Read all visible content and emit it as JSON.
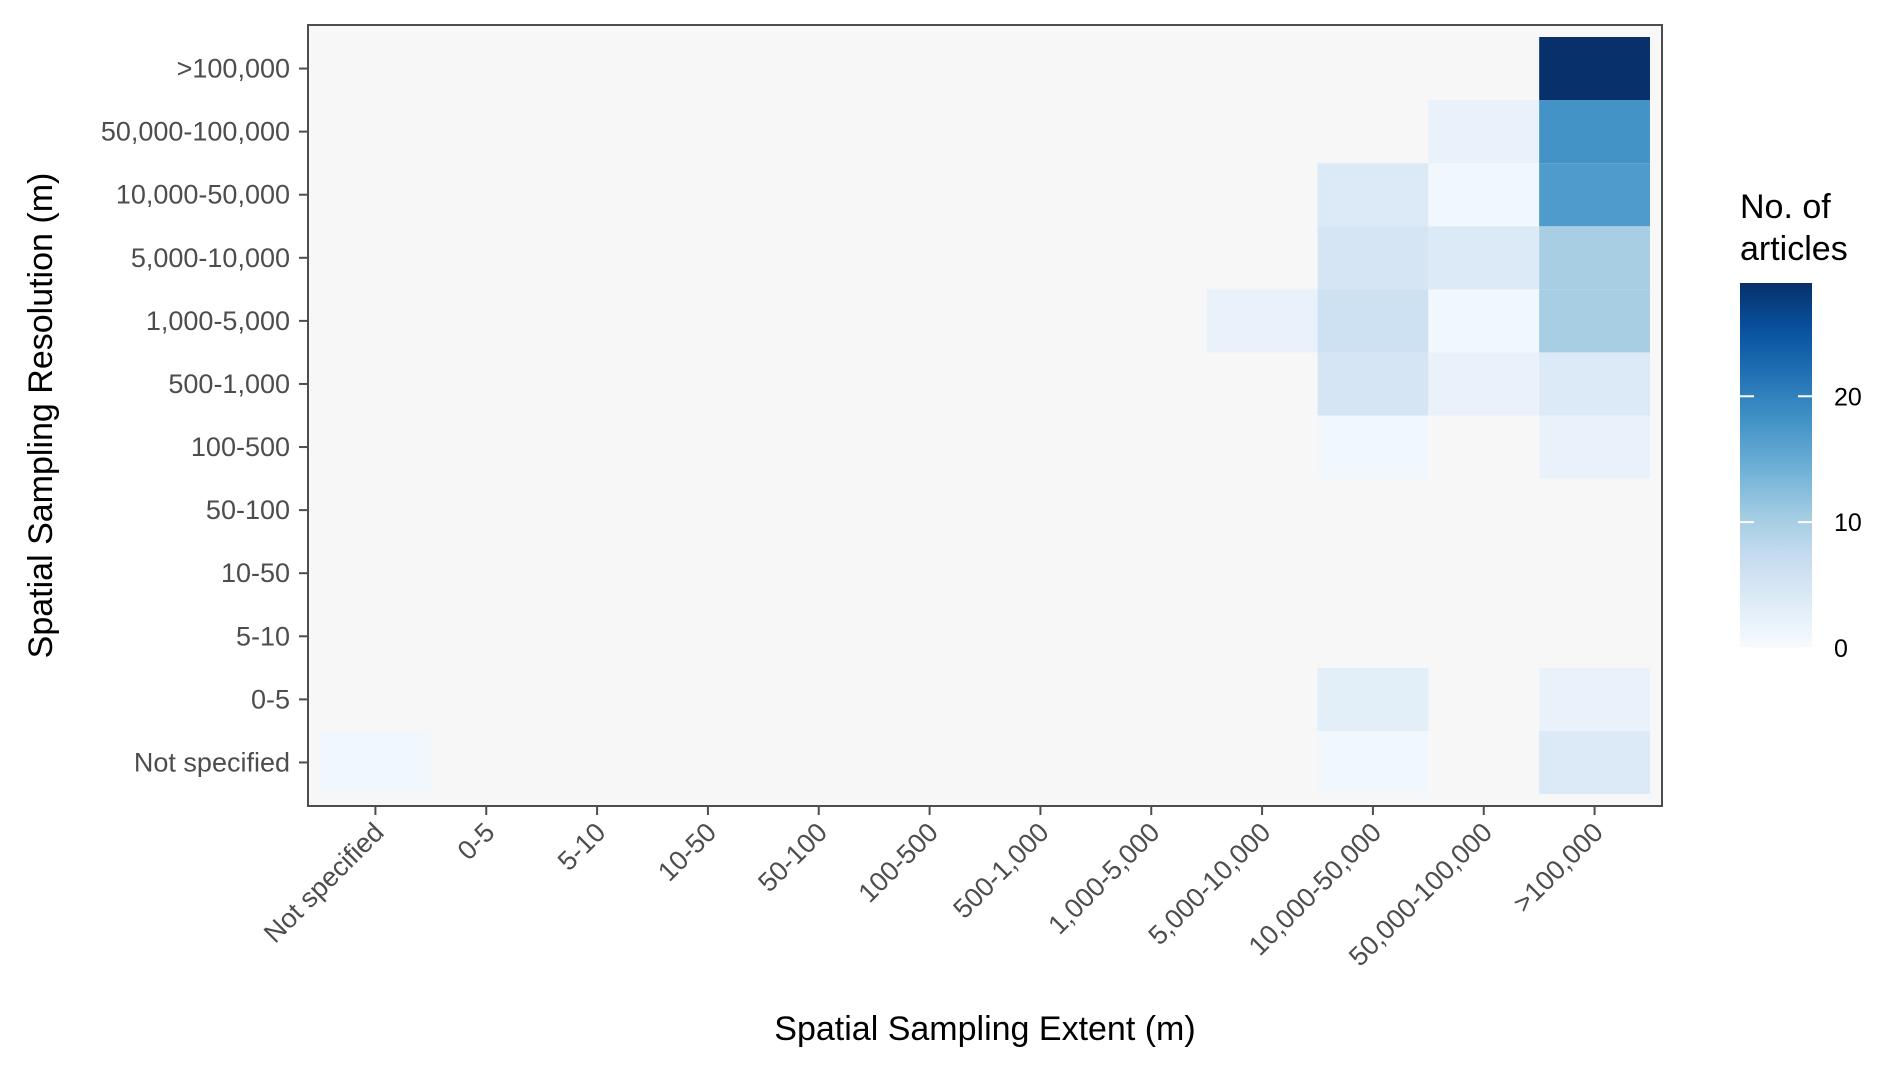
{
  "chart_data": {
    "type": "heatmap",
    "xlabel": "Spatial Sampling Extent (m)",
    "ylabel": "Spatial Sampling Resolution (m)",
    "x_categories": [
      "Not specified",
      "0-5",
      "5-10",
      "10-50",
      "50-100",
      "100-500",
      "500-1,000",
      "1,000-5,000",
      "5,000-10,000",
      "10,000-50,000",
      "50,000-100,000",
      ">100,000"
    ],
    "y_categories": [
      "Not specified",
      "0-5",
      "5-10",
      "10-50",
      "50-100",
      "100-500",
      "500-1,000",
      "1,000-5,000",
      "5,000-10,000",
      "10,000-50,000",
      "50,000-100,000",
      ">100,000"
    ],
    "cells": [
      {
        "x": "Not specified",
        "y": "Not specified",
        "value": 1
      },
      {
        "x": "10,000-50,000",
        "y": "Not specified",
        "value": 1
      },
      {
        "x": ">100,000",
        "y": "Not specified",
        "value": 4
      },
      {
        "x": "10,000-50,000",
        "y": "0-5",
        "value": 3
      },
      {
        "x": ">100,000",
        "y": "0-5",
        "value": 2
      },
      {
        "x": "10,000-50,000",
        "y": "100-500",
        "value": 1
      },
      {
        "x": ">100,000",
        "y": "100-500",
        "value": 2
      },
      {
        "x": "10,000-50,000",
        "y": "500-1,000",
        "value": 5
      },
      {
        "x": "50,000-100,000",
        "y": "500-1,000",
        "value": 2
      },
      {
        "x": ">100,000",
        "y": "500-1,000",
        "value": 4
      },
      {
        "x": "5,000-10,000",
        "y": "1,000-5,000",
        "value": 2
      },
      {
        "x": "10,000-50,000",
        "y": "1,000-5,000",
        "value": 6
      },
      {
        "x": "50,000-100,000",
        "y": "1,000-5,000",
        "value": 1
      },
      {
        "x": ">100,000",
        "y": "1,000-5,000",
        "value": 10
      },
      {
        "x": "10,000-50,000",
        "y": "5,000-10,000",
        "value": 5
      },
      {
        "x": "50,000-100,000",
        "y": "5,000-10,000",
        "value": 4
      },
      {
        "x": ">100,000",
        "y": "5,000-10,000",
        "value": 10
      },
      {
        "x": "10,000-50,000",
        "y": "10,000-50,000",
        "value": 4
      },
      {
        "x": "50,000-100,000",
        "y": "10,000-50,000",
        "value": 1
      },
      {
        "x": ">100,000",
        "y": "10,000-50,000",
        "value": 17
      },
      {
        "x": "50,000-100,000",
        "y": "50,000-100,000",
        "value": 2
      },
      {
        "x": ">100,000",
        "y": "50,000-100,000",
        "value": 18
      },
      {
        "x": ">100,000",
        "y": ">100,000",
        "value": 29
      }
    ],
    "colorbar": {
      "title": "No. of articles",
      "title_lines": [
        "No. of",
        "articles"
      ],
      "ticks": [
        0,
        10,
        20
      ],
      "range": [
        0,
        29
      ],
      "low_color": "#f7fbff",
      "mid_color": "#6baed6",
      "high_color": "#08306b",
      "stops": [
        "#f7fbff",
        "#deebf7",
        "#c6dbef",
        "#9ecae1",
        "#6baed6",
        "#4292c6",
        "#2171b5",
        "#08519c",
        "#08306b"
      ]
    },
    "panel_background": "#f7f7f7",
    "panel_border": "#4d4d4d"
  }
}
